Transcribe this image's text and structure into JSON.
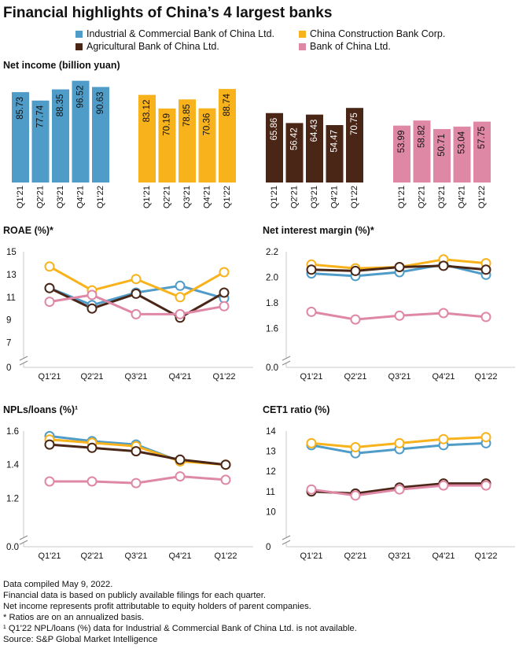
{
  "title": "Financial highlights of China’s 4 largest banks",
  "colors": {
    "icbc": "#4f9cc9",
    "ccb": "#f8b21b",
    "abc": "#4a2616",
    "boc": "#df88a6"
  },
  "legend": [
    {
      "key": "icbc",
      "label": "Industrial & Commercial Bank of China Ltd."
    },
    {
      "key": "ccb",
      "label": "China Construction Bank Corp."
    },
    {
      "key": "abc",
      "label": "Agricultural Bank of China Ltd."
    },
    {
      "key": "boc",
      "label": "Bank of China Ltd."
    }
  ],
  "chart_data": [
    {
      "id": "net-income",
      "type": "bar",
      "title": "Net income (billion yuan)",
      "categories": [
        "Q1'21",
        "Q2'21",
        "Q3'21",
        "Q4'21",
        "Q1'22"
      ],
      "ylim": [
        0,
        100
      ],
      "series": [
        {
          "key": "icbc",
          "name": "Industrial & Commercial Bank of China Ltd.",
          "values": [
            85.73,
            77.74,
            88.35,
            96.52,
            90.63
          ],
          "labels": [
            "85.73",
            "77.74",
            "88.35",
            "96.52",
            "90.63"
          ]
        },
        {
          "key": "ccb",
          "name": "China Construction Bank Corp.",
          "values": [
            83.12,
            70.19,
            78.85,
            70.36,
            88.74
          ],
          "labels": [
            "83.12",
            "70.19",
            "78.85",
            "70.36",
            "88.74"
          ]
        },
        {
          "key": "abc",
          "name": "Agricultural Bank of China Ltd.",
          "values": [
            65.86,
            56.42,
            64.43,
            54.47,
            70.75
          ],
          "labels": [
            "65.86",
            "56.42",
            "64.43",
            "54.47",
            "70.75"
          ]
        },
        {
          "key": "boc",
          "name": "Bank of China Ltd.",
          "values": [
            53.99,
            58.82,
            50.71,
            53.04,
            57.75
          ],
          "labels": [
            "53.99",
            "58.82",
            "50.71",
            "53.04",
            "57.75"
          ]
        }
      ]
    },
    {
      "id": "roae",
      "type": "line",
      "title": "ROAE (%)*",
      "categories": [
        "Q1'21",
        "Q2'21",
        "Q3'21",
        "Q4'21",
        "Q1'22"
      ],
      "ylim": [
        6,
        15
      ],
      "axis_break": true,
      "yticks": [
        7,
        9,
        11,
        13,
        15
      ],
      "ytick_labels": [
        "7",
        "9",
        "11",
        "13",
        "15"
      ],
      "zero_label": "0",
      "series": [
        {
          "key": "icbc",
          "values": [
            11.8,
            10.3,
            11.4,
            12.0,
            10.9
          ]
        },
        {
          "key": "ccb",
          "values": [
            13.7,
            11.6,
            12.6,
            11.0,
            13.2
          ]
        },
        {
          "key": "abc",
          "values": [
            11.8,
            10.0,
            11.3,
            9.2,
            11.4
          ]
        },
        {
          "key": "boc",
          "values": [
            10.6,
            11.2,
            9.5,
            9.5,
            10.2
          ]
        }
      ]
    },
    {
      "id": "nim",
      "type": "line",
      "title": "Net interest margin (%)*",
      "categories": [
        "Q1'21",
        "Q2'21",
        "Q3'21",
        "Q4'21",
        "Q1'22"
      ],
      "ylim": [
        1.4,
        2.2
      ],
      "axis_break": true,
      "yticks": [
        1.6,
        1.8,
        2.0,
        2.2
      ],
      "ytick_labels": [
        "1.6",
        "1.8",
        "2.0",
        "2.2"
      ],
      "zero_label": "0.0",
      "series": [
        {
          "key": "icbc",
          "values": [
            2.03,
            2.01,
            2.04,
            2.1,
            2.02
          ]
        },
        {
          "key": "ccb",
          "values": [
            2.1,
            2.07,
            2.08,
            2.14,
            2.11
          ]
        },
        {
          "key": "abc",
          "values": [
            2.06,
            2.05,
            2.08,
            2.09,
            2.06
          ]
        },
        {
          "key": "boc",
          "values": [
            1.73,
            1.67,
            1.7,
            1.72,
            1.69
          ]
        }
      ]
    },
    {
      "id": "npl",
      "type": "line",
      "title": "NPLs/loans (%)¹",
      "categories": [
        "Q1'21",
        "Q2'21",
        "Q3'21",
        "Q4'21",
        "Q1'22"
      ],
      "ylim": [
        1.0,
        1.6
      ],
      "axis_break": true,
      "yticks": [
        1.2,
        1.4,
        1.6
      ],
      "ytick_labels": [
        "1.2",
        "1.4",
        "1.6"
      ],
      "zero_label": "0.0",
      "series": [
        {
          "key": "icbc",
          "values": [
            1.57,
            1.54,
            1.52,
            1.42,
            null
          ]
        },
        {
          "key": "ccb",
          "values": [
            1.55,
            1.53,
            1.51,
            1.42,
            1.4
          ]
        },
        {
          "key": "abc",
          "values": [
            1.52,
            1.5,
            1.48,
            1.43,
            1.4
          ]
        },
        {
          "key": "boc",
          "values": [
            1.3,
            1.3,
            1.29,
            1.33,
            1.31
          ]
        }
      ]
    },
    {
      "id": "cet1",
      "type": "line",
      "title": "CET1 ratio (%)",
      "categories": [
        "Q1'21",
        "Q2'21",
        "Q3'21",
        "Q4'21",
        "Q1'22"
      ],
      "ylim": [
        9,
        14
      ],
      "axis_break": true,
      "yticks": [
        10,
        11,
        12,
        13,
        14
      ],
      "ytick_labels": [
        "10",
        "11",
        "12",
        "13",
        "14"
      ],
      "zero_label": "0",
      "series": [
        {
          "key": "icbc",
          "values": [
            13.3,
            12.9,
            13.1,
            13.3,
            13.4
          ]
        },
        {
          "key": "ccb",
          "values": [
            13.4,
            13.2,
            13.4,
            13.6,
            13.7
          ]
        },
        {
          "key": "abc",
          "values": [
            11.0,
            10.9,
            11.2,
            11.4,
            11.4
          ]
        },
        {
          "key": "boc",
          "values": [
            11.1,
            10.8,
            11.1,
            11.3,
            11.3
          ]
        }
      ]
    }
  ],
  "footnotes": [
    "Data compiled May 9, 2022.",
    "Financial data is based on publicly available filings for each quarter.",
    "Net income represents profit attributable to equity holders of parent companies.",
    "* Ratios are on an annualized basis.",
    "¹ Q1'22 NPL/loans (%) data for Industrial & Commercial Bank of China Ltd. is not available.",
    "Source: S&P Global Market Intelligence"
  ]
}
